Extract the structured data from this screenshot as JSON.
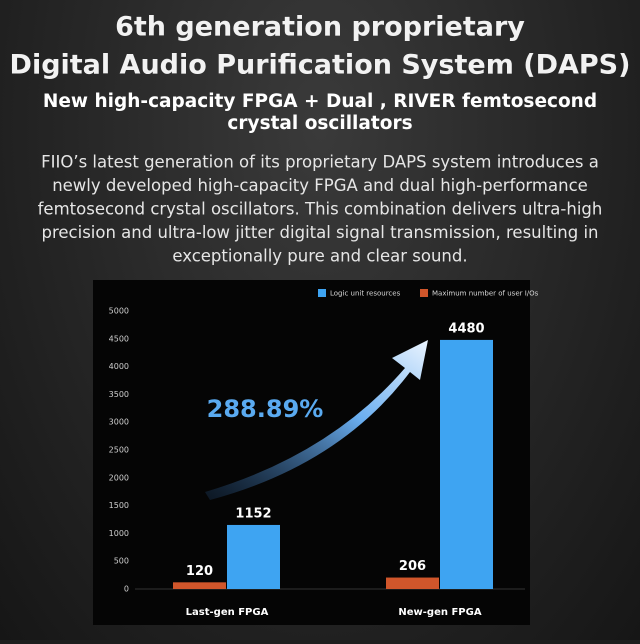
{
  "chart_data": {
    "type": "bar",
    "title": [
      "6th generation proprietary",
      "Digital Audio Purification System (DAPS)"
    ],
    "subtitle": [
      "New high-capacity FPGA + Dual , RIVER femtosecond",
      "crystal oscillators"
    ],
    "description": [
      "FIIO’s latest generation of its proprietary DAPS system introduces a",
      "newly developed high-capacity FPGA and dual high-performance",
      "femtosecond crystal oscillators. This combination delivers ultra-high",
      "precision and ultra-low jitter digital signal transmission, resulting in",
      "exceptionally pure and clear sound."
    ],
    "annotation": "288.89%",
    "categories": [
      "Last-gen FPGA",
      "New-gen FPGA"
    ],
    "series": [
      {
        "name": "Logic unit resources",
        "color": "#3ea4f2",
        "values": [
          1152,
          4480
        ]
      },
      {
        "name": "Maximum number of user I/Os",
        "color": "#d0562b",
        "values": [
          120,
          206
        ]
      }
    ],
    "ylim": [
      0,
      5000
    ],
    "yticks": [
      0,
      500,
      1000,
      1500,
      2000,
      2500,
      3000,
      3500,
      4000,
      4500,
      5000
    ]
  }
}
